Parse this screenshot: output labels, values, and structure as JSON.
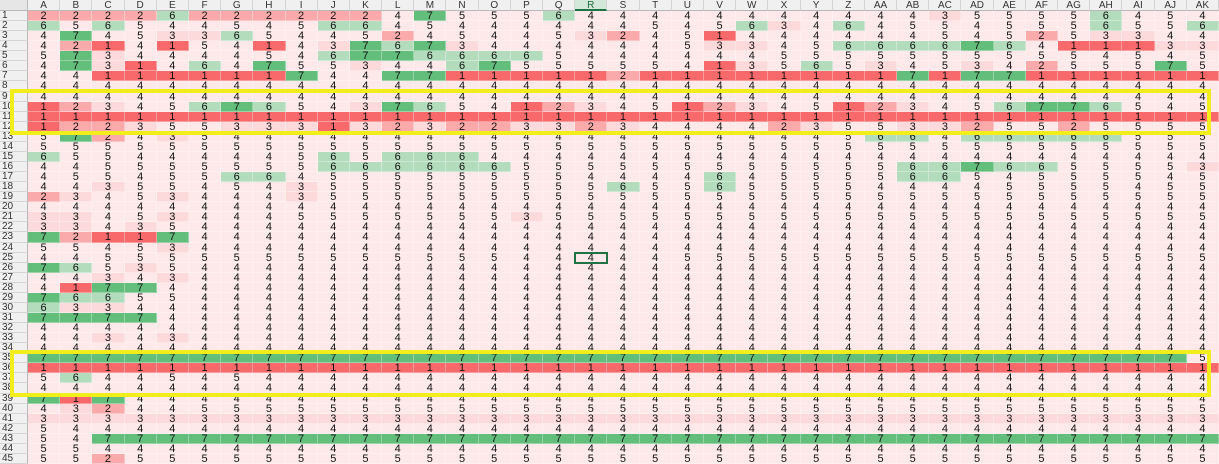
{
  "spreadsheet": {
    "columns": [
      "A",
      "B",
      "C",
      "D",
      "E",
      "F",
      "G",
      "H",
      "I",
      "J",
      "K",
      "L",
      "M",
      "N",
      "O",
      "P",
      "Q",
      "R",
      "S",
      "T",
      "U",
      "V",
      "W",
      "X",
      "Y",
      "Z",
      "AA",
      "AB",
      "AC",
      "AD",
      "AE",
      "AF",
      "AG",
      "AH",
      "AI",
      "AJ",
      "AK"
    ],
    "selected_column": "R",
    "row_numbers": [
      "1",
      "2",
      "3",
      "4",
      "5",
      "6",
      "7",
      "8",
      "9",
      "10",
      "11",
      "12",
      "13",
      "14",
      "15",
      "16",
      "17",
      "18",
      "19",
      "20",
      "21",
      "22",
      "23",
      "24",
      "25",
      "26",
      "27",
      "28",
      "29",
      "30",
      "31",
      "32",
      "33",
      "34",
      "35",
      "36",
      "37",
      "38",
      "39",
      "40",
      "41",
      "42",
      "43",
      "44",
      "45"
    ],
    "active_cell": "R25",
    "highlighted_rows": [
      [
        "9",
        "12"
      ],
      [
        "35",
        "38"
      ]
    ],
    "color_scale": {
      "low": "#f8696b",
      "low_mid": "#fbaaab",
      "mid_light": "#fcd9da",
      "mid": "#fde9ea",
      "high_mid": "#b3dcbd",
      "high": "#63be7b"
    },
    "highlight_color": "#f2ee1c",
    "values": [
      "2222622222247555644444444444355556454",
      "6565445456645444444545634645545556556",
      "4745336544524544532451444444545253344",
      "4214154143767344444453345666676411133",
      "5734444546776666544444455555555554545",
      "4731464755344675555541356534534255575",
      "4411111174477111112111111117177111111",
      "4444444444444444444444444444444444444",
      "4444444444444444444444444444444444444",
      "1234567654376541234512345123456776545",
      "1111111111111111111111111111111111111",
      "1223553331323223323444423553325525555",
      "5724354444444444444444444566466666555",
      "5555555555555555555555555555555555555",
      "6554444456566644444444444444444444444",
      "4455555556666665555555555556676655553",
      "4554556645555555544446455556654555545",
      "4435545435555555556556555544445555455",
      "2345344435555555555555555555555555555",
      "4444444444444444444444444444444444444",
      "3345344455555553555555555555555555555",
      "3343544444444444444444444444444444444",
      "7211744444444444444444444444444444444",
      "5545344444444444444444444444444444444",
      "4455555555555554444455555555555555555",
      "7653544444444444444444444444444444444",
      "4434344444444444444444444444444444444",
      "4177444444444444444444444444444444444",
      "7665544444444444444444444444444444444",
      "6334444444444444444444444444444444444",
      "7777444444444444444444444444444444444",
      "4444444444444444444444444444444444444",
      "4434344444444444444444444444444444444",
      "4444444444444444444444444444444444444",
      "7777777777777777777777777777777777775",
      "1111111111111111111111111111111111111",
      "5644545444444444444444444444444444444",
      "4444444444444444444444444444444444444",
      "7174444444444444444444444444444444444",
      "4324455555555555555555555555555555555",
      "3333333333333333333333333333333333333",
      "5444444444444444444444444444444444444",
      "5477777777777777777777777777777777777",
      "5544444444444444444444444444444444444",
      "5525555555555555555555555555555555555"
    ]
  }
}
